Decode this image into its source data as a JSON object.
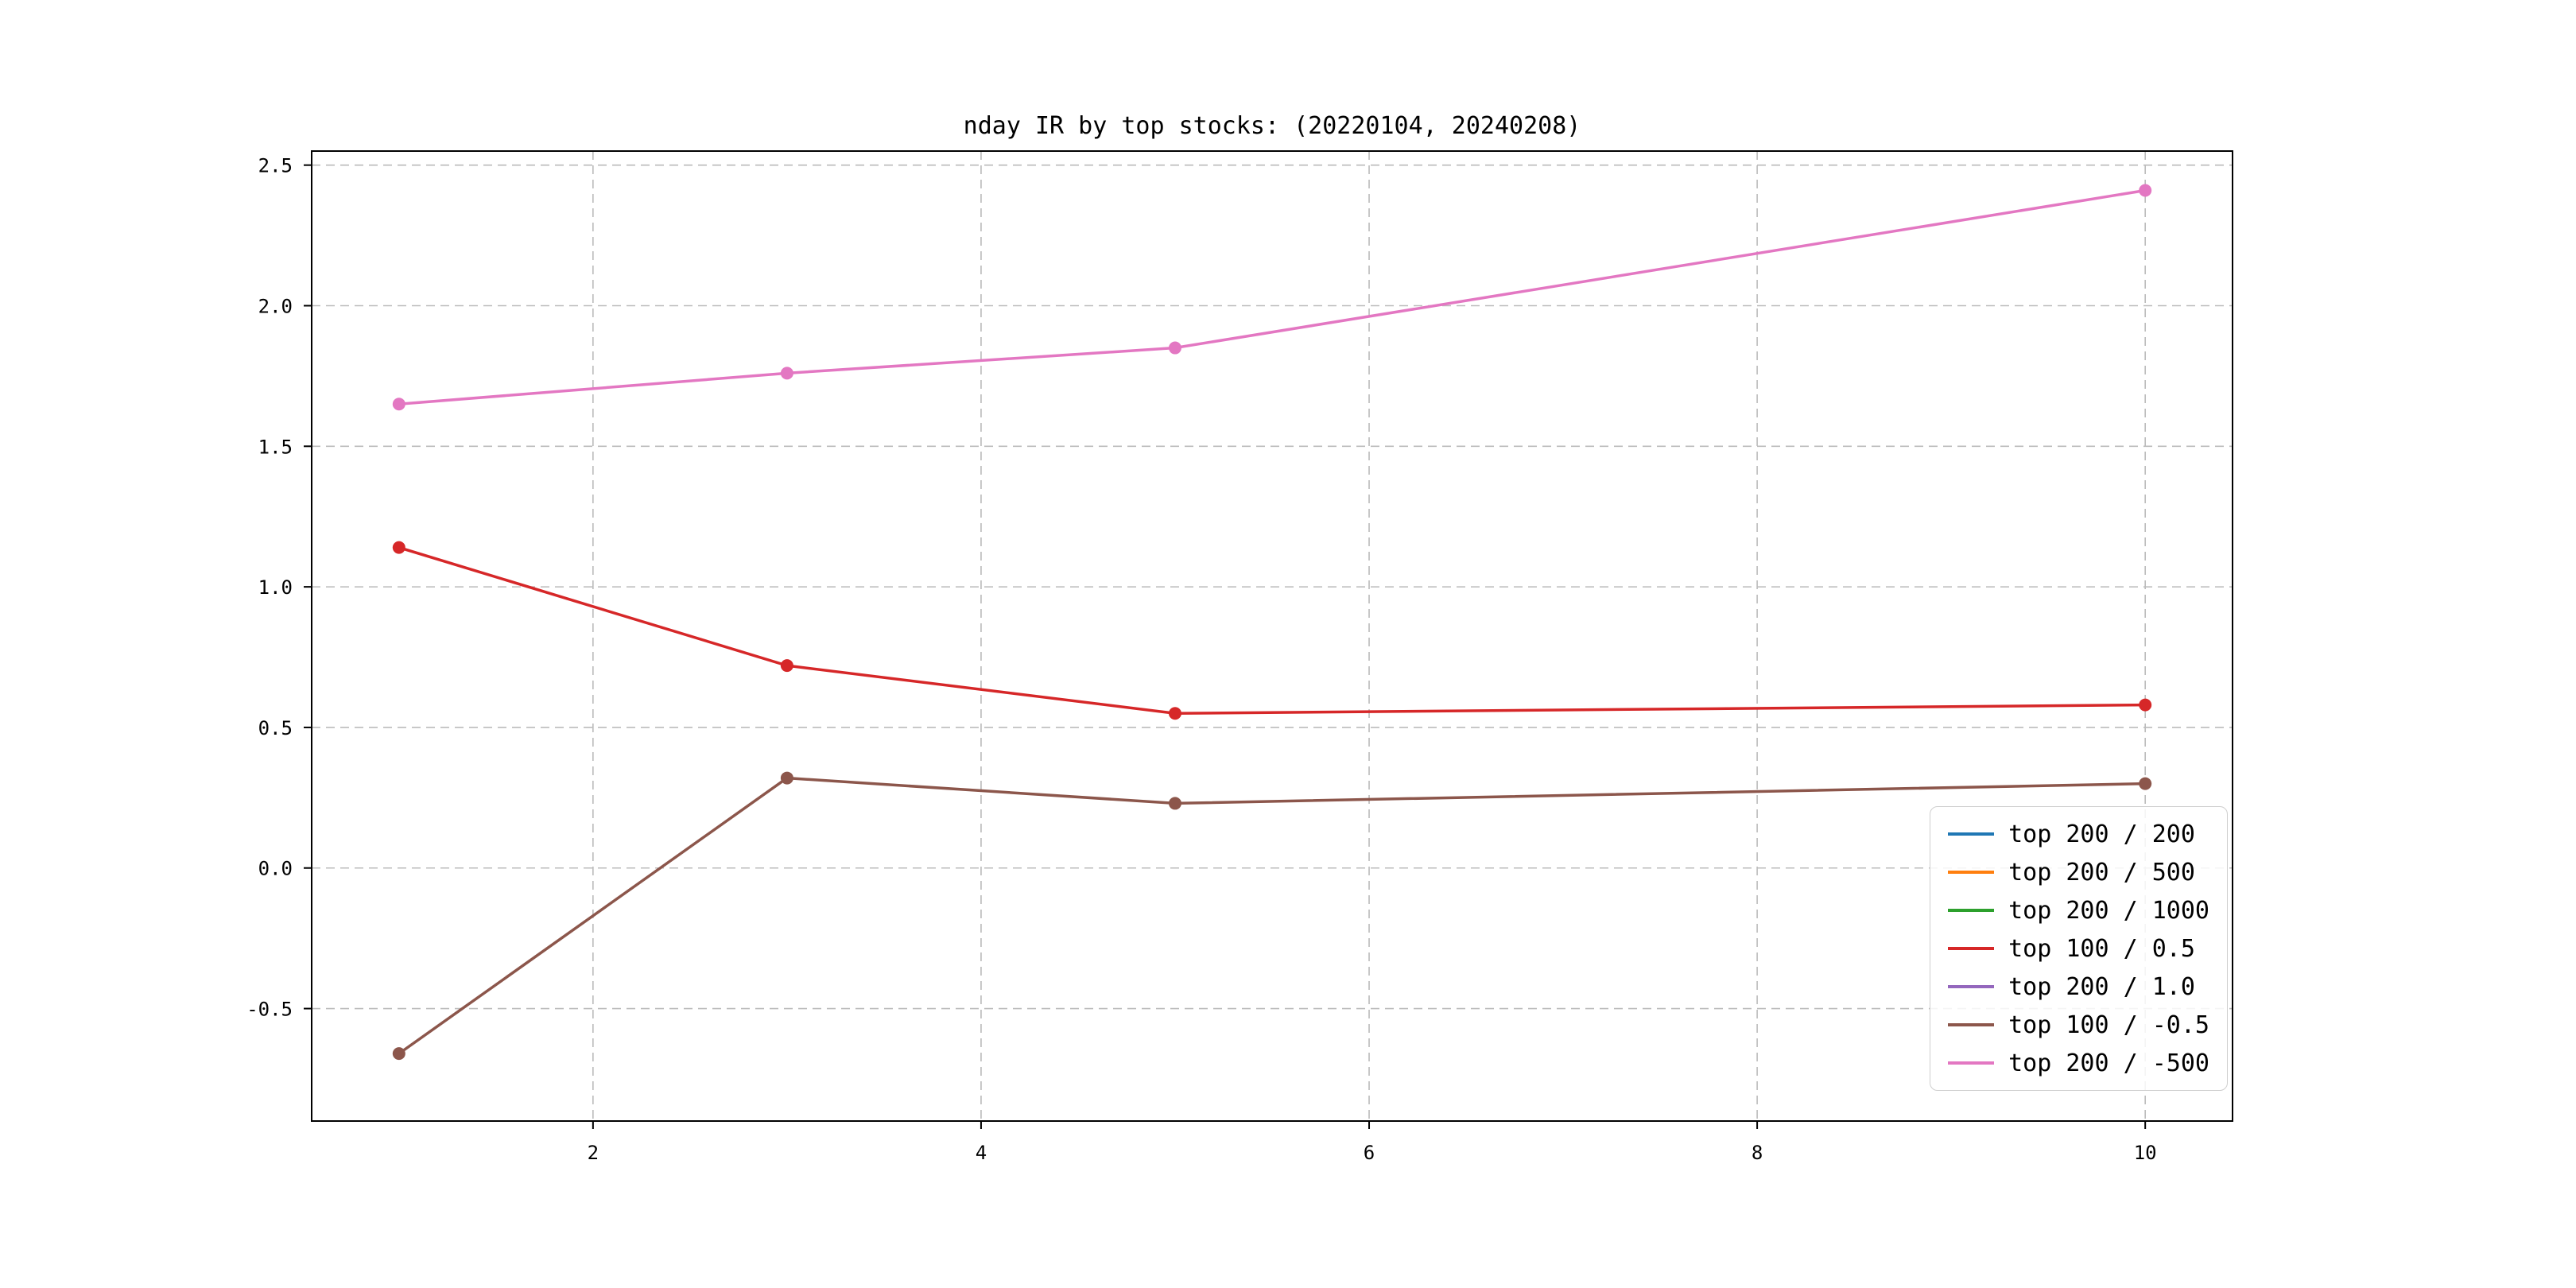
{
  "chart_data": {
    "type": "line",
    "title": "nday IR by top stocks: (20220104, 20240208)",
    "xlabel": "",
    "ylabel": "",
    "xlim": [
      0.55,
      10.45
    ],
    "ylim": [
      -0.9,
      2.55
    ],
    "xticks": [
      2,
      4,
      6,
      8,
      10
    ],
    "yticks": [
      -0.5,
      0.0,
      0.5,
      1.0,
      1.5,
      2.0,
      2.5
    ],
    "grid": true,
    "grid_style": "dashed",
    "legend_position": "lower right",
    "series": [
      {
        "name": "top 200 / 200",
        "color": "#1f77b4",
        "x": [],
        "y": []
      },
      {
        "name": "top 200 / 500",
        "color": "#ff7f0e",
        "x": [],
        "y": []
      },
      {
        "name": "top 200 / 1000",
        "color": "#2ca02c",
        "x": [],
        "y": []
      },
      {
        "name": "top 100 / 0.5",
        "color": "#d62728",
        "x": [
          1,
          3,
          5,
          10
        ],
        "y": [
          1.14,
          0.72,
          0.55,
          0.58
        ]
      },
      {
        "name": "top 200 / 1.0",
        "color": "#9467bd",
        "x": [],
        "y": []
      },
      {
        "name": "top 100 / -0.5",
        "color": "#8c564b",
        "x": [
          1,
          3,
          5,
          10
        ],
        "y": [
          -0.66,
          0.32,
          0.23,
          0.3
        ]
      },
      {
        "name": "top 200 / -500",
        "color": "#e377c2",
        "x": [
          1,
          3,
          5,
          10
        ],
        "y": [
          1.65,
          1.76,
          1.85,
          2.41
        ]
      }
    ]
  }
}
